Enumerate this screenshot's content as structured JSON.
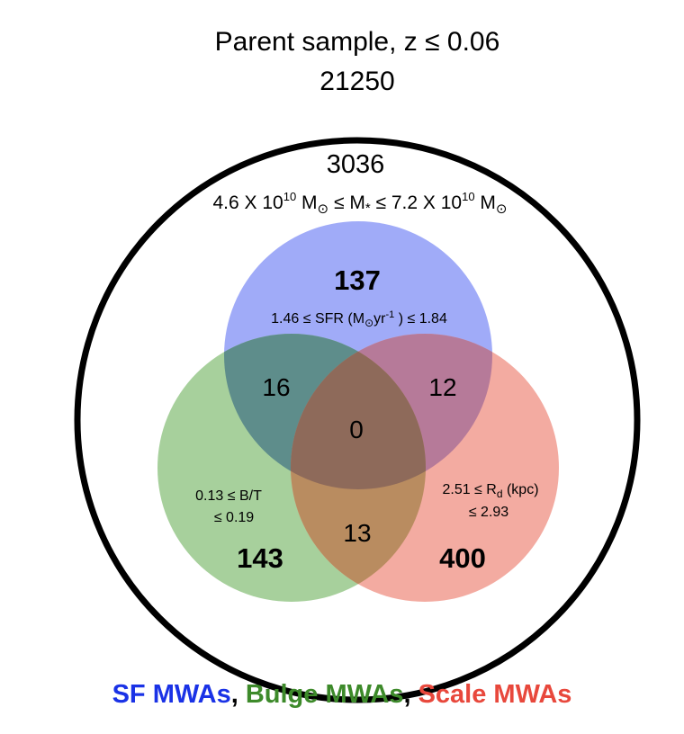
{
  "parent": {
    "title": "Parent sample, z ≤ 0.06",
    "count": "21250"
  },
  "mass_cut": {
    "count": "3036",
    "lower": "4.6 X 10",
    "lower_exp": "10",
    "m_symbol": "M",
    "sun": "⊙",
    "le": " ≤ ",
    "mstar": "M",
    "star_sub": "*",
    "upper": "7.2 X 10",
    "upper_exp": "10"
  },
  "sf": {
    "count": "137",
    "range_lo": "1.46  ≤ SFR (M",
    "sun": "⊙",
    "unit": "yr",
    "unit_exp": "-1",
    "range_hi": " ) ≤ 1.84"
  },
  "bulge": {
    "count": "143",
    "line1": "0.13  ≤ B/T",
    "line2": "≤ 0.19"
  },
  "scale": {
    "count": "400",
    "line1_pre": "2.51  ≤ R",
    "line1_sub": "d",
    "line1_post": " (kpc)",
    "line2": "≤ 2.93"
  },
  "overlaps": {
    "sf_bulge": "16",
    "sf_scale": "12",
    "bulge_scale": "13",
    "all": "0"
  },
  "legend": {
    "sf": "SF MWAs",
    "sep1": ", ",
    "bulge": "Bulge MWAs",
    "sep2": ", ",
    "scale": "Scale MWAs"
  },
  "colors": {
    "sf": "#4466ee",
    "bulge": "#3d8a2a",
    "scale": "#e8483c",
    "outline": "#000000"
  }
}
